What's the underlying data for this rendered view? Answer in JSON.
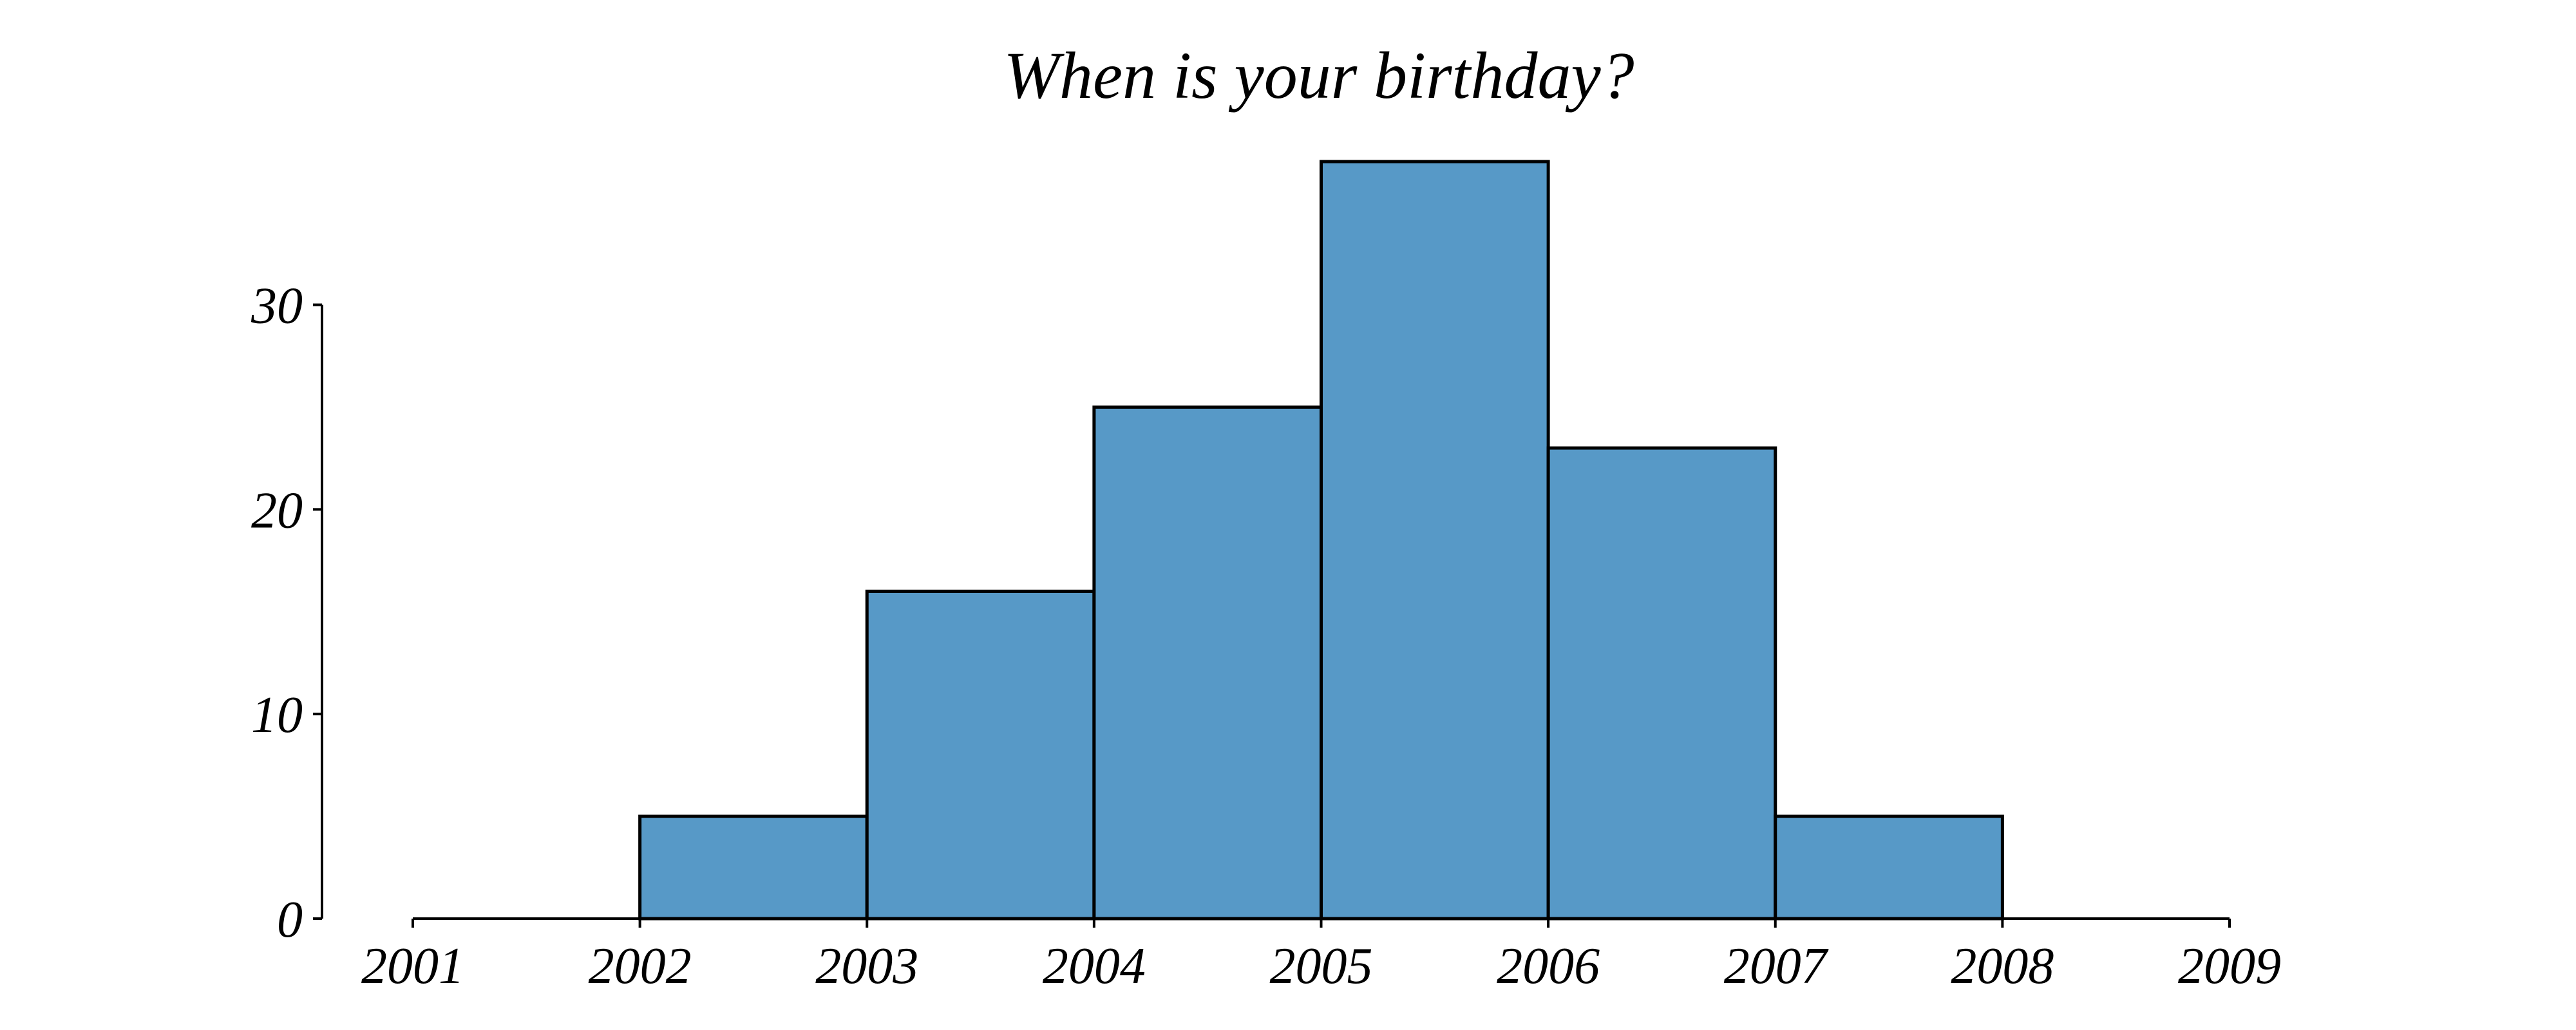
{
  "chart_data": {
    "type": "bar",
    "title": "When is your birthday?",
    "xlabel": "",
    "ylabel": "",
    "bin_edges": [
      2001,
      2002,
      2003,
      2004,
      2005,
      2006,
      2007,
      2008,
      2009
    ],
    "values": [
      0,
      5,
      16,
      25,
      37,
      23,
      5,
      0
    ],
    "xlim": [
      2001,
      2009
    ],
    "ylim": [
      0,
      37
    ],
    "x_ticks": [
      "2001",
      "2002",
      "2003",
      "2004",
      "2005",
      "2006",
      "2007",
      "2008",
      "2009"
    ],
    "y_ticks": [
      "0",
      "10",
      "20",
      "30"
    ],
    "bar_color": "#5799c7",
    "edge_color": "#000000",
    "grid": false,
    "legend": "none"
  }
}
